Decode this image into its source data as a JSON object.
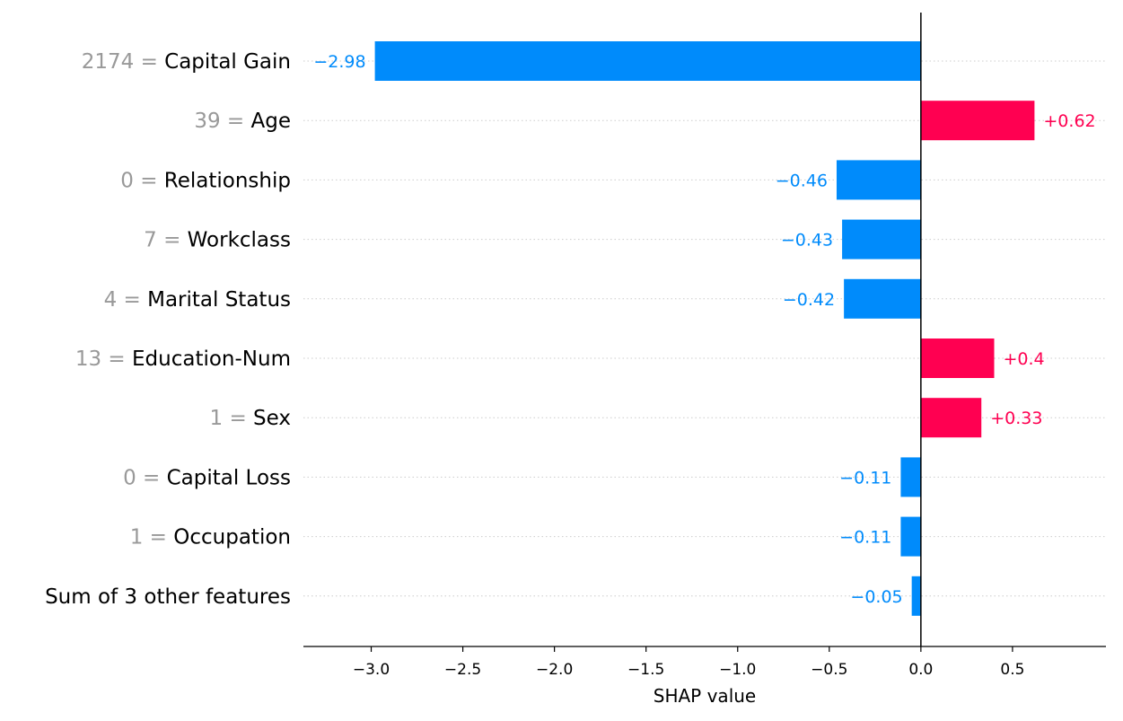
{
  "chart_data": {
    "type": "bar",
    "orientation": "horizontal",
    "rows": [
      {
        "value": "2174",
        "feature": "Capital Gain",
        "shap": -2.98,
        "label": "−2.98"
      },
      {
        "value": "39",
        "feature": "Age",
        "shap": 0.62,
        "label": "+0.62"
      },
      {
        "value": "0",
        "feature": "Relationship",
        "shap": -0.46,
        "label": "−0.46"
      },
      {
        "value": "7",
        "feature": "Workclass",
        "shap": -0.43,
        "label": "−0.43"
      },
      {
        "value": "4",
        "feature": "Marital Status",
        "shap": -0.42,
        "label": "−0.42"
      },
      {
        "value": "13",
        "feature": "Education-Num",
        "shap": 0.4,
        "label": "+0.4"
      },
      {
        "value": "1",
        "feature": "Sex",
        "shap": 0.33,
        "label": "+0.33"
      },
      {
        "value": "0",
        "feature": "Capital Loss",
        "shap": -0.11,
        "label": "−0.11"
      },
      {
        "value": "1",
        "feature": "Occupation",
        "shap": -0.11,
        "label": "−0.11"
      },
      {
        "value": "",
        "feature": "Sum of 3 other features",
        "shap": -0.05,
        "label": "−0.05"
      }
    ],
    "xlabel": "SHAP value",
    "xlim": [
      -3.37,
      1.01
    ],
    "xticks": [
      -3.0,
      -2.5,
      -2.0,
      -1.5,
      -1.0,
      -0.5,
      0.0,
      0.5
    ],
    "xtick_labels": [
      "−3.0",
      "−2.5",
      "−2.0",
      "−1.5",
      "−1.0",
      "−0.5",
      "0.0",
      "0.5"
    ],
    "grid": "horizontal dotted",
    "colors": {
      "positive": "#ff0051",
      "negative": "#008bfb",
      "feature_value": "#999999",
      "grid": "#cccccc"
    }
  }
}
